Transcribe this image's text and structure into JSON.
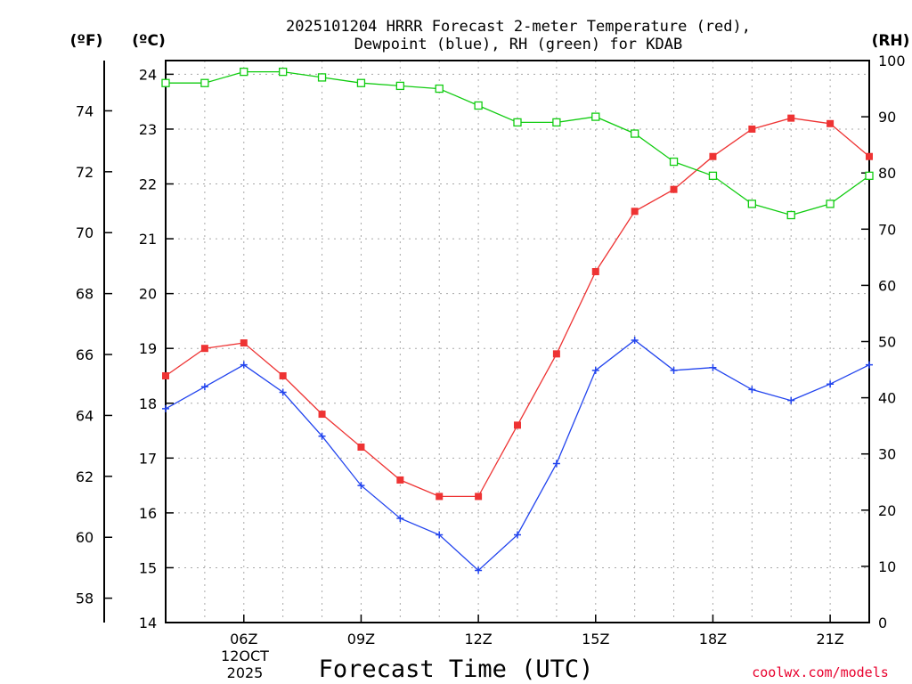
{
  "chart_data": {
    "type": "line",
    "title_lines": [
      "2025101204 HRRR Forecast 2-meter Temperature (red),",
      "Dewpoint (blue), RH (green) for KDAB"
    ],
    "left_outer_unit": "(ºF)",
    "left_inner_unit": "(ºC)",
    "right_unit": "(RH)",
    "xlabel": "Forecast Time (UTC)",
    "x_hours": [
      4,
      5,
      6,
      7,
      8,
      9,
      10,
      11,
      12,
      13,
      14,
      15,
      16,
      17,
      18,
      19,
      20,
      21,
      22
    ],
    "x_range": [
      4,
      22
    ],
    "x_ticks": [
      {
        "hour": 6,
        "label": "06Z"
      },
      {
        "hour": 9,
        "label": "09Z"
      },
      {
        "hour": 12,
        "label": "12Z"
      },
      {
        "hour": 15,
        "label": "15Z"
      },
      {
        "hour": 18,
        "label": "18Z"
      },
      {
        "hour": 21,
        "label": "21Z"
      }
    ],
    "date_label_lines": [
      "12OCT",
      "2025"
    ],
    "celsius_axis": {
      "range": [
        14,
        24.25
      ],
      "ticks": [
        "14",
        "15",
        "16",
        "17",
        "18",
        "19",
        "20",
        "21",
        "22",
        "23",
        "24"
      ]
    },
    "fahrenheit_axis": {
      "ticks": [
        "58",
        "60",
        "62",
        "64",
        "66",
        "68",
        "70",
        "72",
        "74"
      ]
    },
    "rh_axis": {
      "range": [
        0,
        100
      ],
      "ticks": [
        "0",
        "10",
        "20",
        "30",
        "40",
        "50",
        "60",
        "70",
        "80",
        "90",
        "100"
      ]
    },
    "series": [
      {
        "name": "Temperature",
        "unit": "°C",
        "color": "#ee3333",
        "marker": "filled-square",
        "values": [
          18.5,
          19.0,
          19.1,
          18.5,
          17.8,
          17.2,
          16.6,
          16.3,
          16.3,
          17.6,
          18.9,
          20.4,
          21.5,
          21.9,
          22.5,
          23.0,
          23.2,
          23.1,
          22.5
        ]
      },
      {
        "name": "Dewpoint",
        "unit": "°C",
        "color": "#2244ee",
        "marker": "plus",
        "values": [
          17.9,
          18.3,
          18.7,
          18.2,
          17.4,
          16.5,
          15.9,
          15.6,
          14.95,
          15.6,
          16.9,
          18.6,
          19.15,
          18.6,
          18.65,
          18.25,
          18.05,
          18.35,
          18.7
        ]
      },
      {
        "name": "RH",
        "unit": "%",
        "color": "#11cc11",
        "marker": "open-square",
        "values": [
          96,
          96,
          98,
          98,
          97,
          96,
          95.5,
          95,
          92,
          89,
          89,
          90,
          87,
          82,
          79.5,
          74.5,
          72.5,
          74.5,
          79.5
        ]
      }
    ]
  },
  "credit": "coolwx.com/models"
}
